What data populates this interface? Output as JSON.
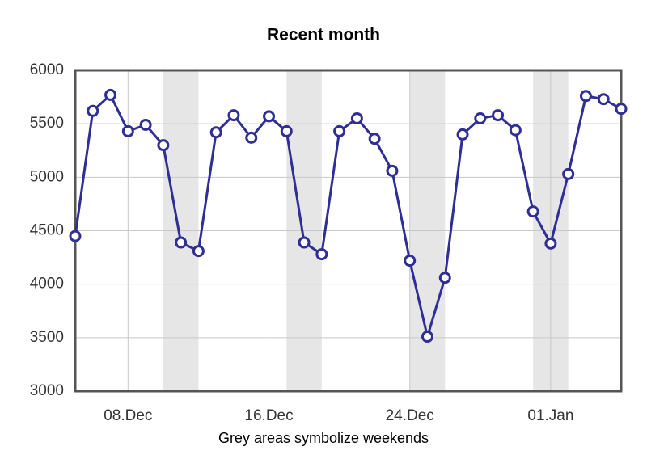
{
  "chart_data": {
    "type": "line",
    "title": "Recent month",
    "caption": "Grey areas symbolize weekends",
    "categories": [
      null,
      null,
      null,
      "08.Dec",
      null,
      null,
      null,
      null,
      null,
      null,
      null,
      "16.Dec",
      null,
      null,
      null,
      null,
      null,
      null,
      null,
      "24.Dec",
      null,
      null,
      null,
      null,
      null,
      null,
      null,
      "01.Jan",
      null,
      null,
      null,
      null
    ],
    "series": [
      {
        "color": "#2e2e96",
        "values": [
          4450,
          5620,
          5770,
          5430,
          5490,
          5300,
          4390,
          4310,
          5420,
          5580,
          5370,
          5570,
          5430,
          4390,
          4280,
          5430,
          5550,
          5360,
          5060,
          4220,
          3510,
          4060,
          5400,
          5550,
          5580,
          5440,
          4680,
          4380,
          5030,
          5760,
          5730,
          5640
        ]
      }
    ],
    "shaded_x_ranges": [
      [
        5,
        7
      ],
      [
        12,
        14
      ],
      [
        19,
        21
      ],
      [
        26,
        28
      ]
    ],
    "shade_color": "#e6e6e6",
    "ylim": [
      3000,
      6000
    ],
    "yticks": [
      3000,
      3500,
      4000,
      4500,
      5000,
      5500,
      6000
    ],
    "grid": true
  }
}
